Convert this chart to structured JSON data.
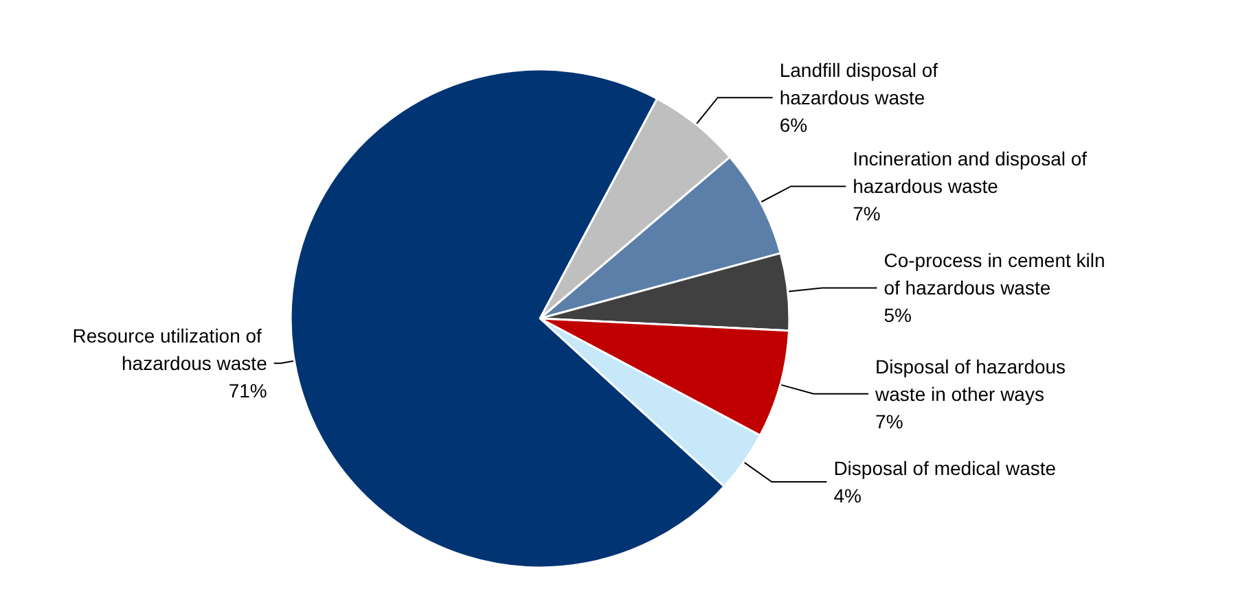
{
  "chart_data": {
    "type": "pie",
    "categories": [
      "Landfill disposal of hazardous waste",
      "Incineration and disposal of hazardous waste",
      "Co-process in cement kiln of hazardous waste",
      "Disposal of hazardous waste in other ways",
      "Disposal of medical waste",
      "Resource utilization of hazardous waste"
    ],
    "values": [
      6,
      7,
      5,
      7,
      4,
      71
    ],
    "colors": [
      "#bfbfbf",
      "#5b7fa8",
      "#404040",
      "#c00000",
      "#c6e8f8",
      "#003473"
    ],
    "value_labels": [
      "6%",
      "7%",
      "5%",
      "7%",
      "4%",
      "71%"
    ],
    "legend": false
  }
}
